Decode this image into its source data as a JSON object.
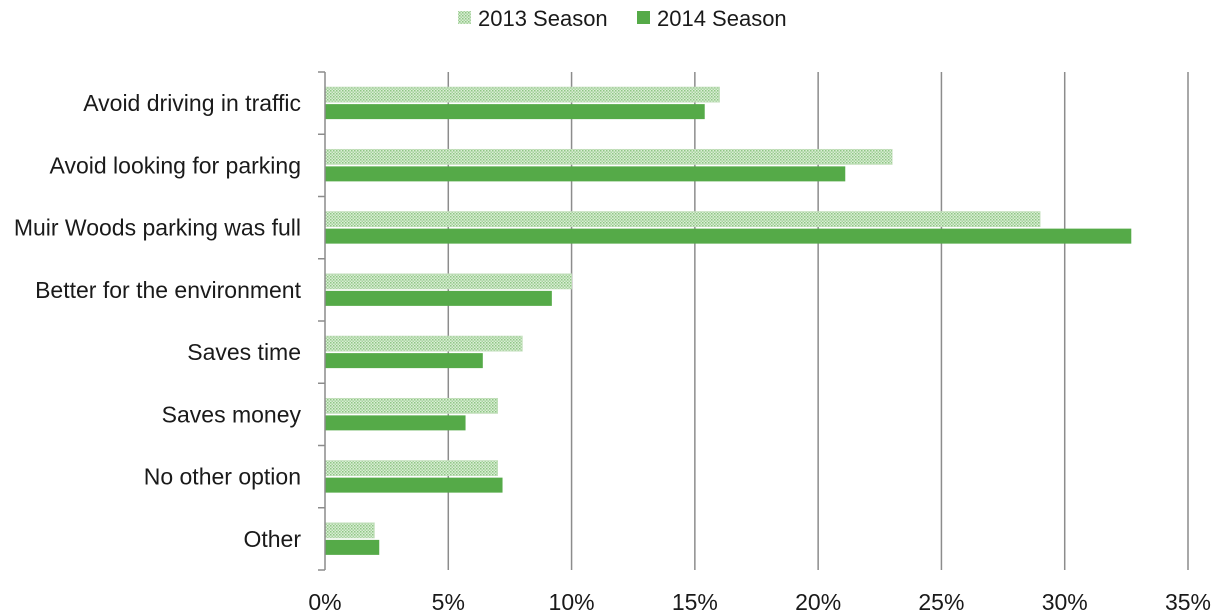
{
  "chart_data": {
    "type": "bar",
    "orientation": "horizontal",
    "categories": [
      "Avoid driving in traffic",
      "Avoid looking for parking",
      "Muir Woods parking was full",
      "Better for the environment",
      "Saves time",
      "Saves money",
      "No other option",
      "Other"
    ],
    "series": [
      {
        "name": "2013 Season",
        "values": [
          16,
          23,
          29,
          10,
          8,
          7,
          7,
          2
        ],
        "color": "#b7dbb0",
        "pattern": "dotted"
      },
      {
        "name": "2014 Season",
        "values": [
          15.4,
          21.1,
          32.7,
          9.2,
          6.4,
          5.7,
          7.2,
          2.2
        ],
        "color": "#55aa48",
        "pattern": "solid"
      }
    ],
    "xlim": [
      0,
      35
    ],
    "xticks": [
      0,
      5,
      10,
      15,
      20,
      25,
      30,
      35
    ],
    "xtick_labels": [
      "0%",
      "5%",
      "10%",
      "15%",
      "20%",
      "25%",
      "30%",
      "35%"
    ],
    "title": "",
    "xlabel": "",
    "ylabel": "",
    "grid": "vertical",
    "legend_position": "top-center"
  }
}
